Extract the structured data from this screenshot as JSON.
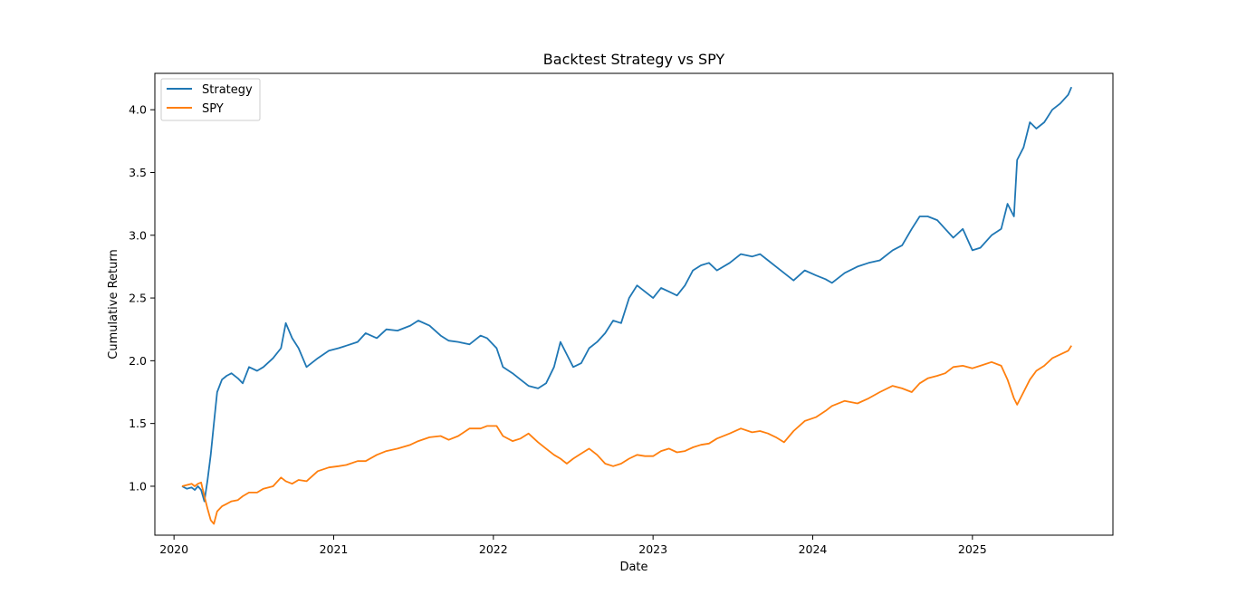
{
  "chart_data": {
    "type": "line",
    "title": "Backtest Strategy vs SPY",
    "xlabel": "Date",
    "ylabel": "Cumulative Return",
    "xlim": [
      2019.88,
      2025.88
    ],
    "ylim": [
      0.61,
      4.29
    ],
    "grid": false,
    "legend_position": "upper-left",
    "x_ticks": [
      "2020",
      "2021",
      "2022",
      "2023",
      "2024",
      "2025"
    ],
    "y_ticks": [
      "1.0",
      "1.5",
      "2.0",
      "2.5",
      "3.0",
      "3.5",
      "4.0"
    ],
    "series": [
      {
        "name": "Strategy",
        "color": "#1f77b4",
        "points": [
          [
            2020.05,
            1.0
          ],
          [
            2020.08,
            0.98
          ],
          [
            2020.11,
            0.99
          ],
          [
            2020.13,
            0.97
          ],
          [
            2020.15,
            1.0
          ],
          [
            2020.17,
            0.97
          ],
          [
            2020.19,
            0.88
          ],
          [
            2020.21,
            1.05
          ],
          [
            2020.23,
            1.25
          ],
          [
            2020.25,
            1.5
          ],
          [
            2020.27,
            1.75
          ],
          [
            2020.3,
            1.85
          ],
          [
            2020.33,
            1.88
          ],
          [
            2020.36,
            1.9
          ],
          [
            2020.4,
            1.86
          ],
          [
            2020.43,
            1.82
          ],
          [
            2020.47,
            1.95
          ],
          [
            2020.52,
            1.92
          ],
          [
            2020.56,
            1.95
          ],
          [
            2020.62,
            2.02
          ],
          [
            2020.67,
            2.1
          ],
          [
            2020.7,
            2.3
          ],
          [
            2020.74,
            2.18
          ],
          [
            2020.78,
            2.1
          ],
          [
            2020.83,
            1.95
          ],
          [
            2020.9,
            2.02
          ],
          [
            2020.97,
            2.08
          ],
          [
            2021.03,
            2.1
          ],
          [
            2021.08,
            2.12
          ],
          [
            2021.15,
            2.15
          ],
          [
            2021.2,
            2.22
          ],
          [
            2021.27,
            2.18
          ],
          [
            2021.33,
            2.25
          ],
          [
            2021.4,
            2.24
          ],
          [
            2021.48,
            2.28
          ],
          [
            2021.53,
            2.32
          ],
          [
            2021.6,
            2.28
          ],
          [
            2021.67,
            2.2
          ],
          [
            2021.72,
            2.16
          ],
          [
            2021.78,
            2.15
          ],
          [
            2021.85,
            2.13
          ],
          [
            2021.92,
            2.2
          ],
          [
            2021.96,
            2.18
          ],
          [
            2022.02,
            2.1
          ],
          [
            2022.06,
            1.95
          ],
          [
            2022.12,
            1.9
          ],
          [
            2022.17,
            1.85
          ],
          [
            2022.22,
            1.8
          ],
          [
            2022.28,
            1.78
          ],
          [
            2022.33,
            1.82
          ],
          [
            2022.38,
            1.95
          ],
          [
            2022.42,
            2.15
          ],
          [
            2022.46,
            2.05
          ],
          [
            2022.5,
            1.95
          ],
          [
            2022.55,
            1.98
          ],
          [
            2022.6,
            2.1
          ],
          [
            2022.65,
            2.15
          ],
          [
            2022.7,
            2.22
          ],
          [
            2022.75,
            2.32
          ],
          [
            2022.8,
            2.3
          ],
          [
            2022.85,
            2.5
          ],
          [
            2022.9,
            2.6
          ],
          [
            2022.95,
            2.55
          ],
          [
            2023.0,
            2.5
          ],
          [
            2023.05,
            2.58
          ],
          [
            2023.1,
            2.55
          ],
          [
            2023.15,
            2.52
          ],
          [
            2023.2,
            2.6
          ],
          [
            2023.25,
            2.72
          ],
          [
            2023.3,
            2.76
          ],
          [
            2023.35,
            2.78
          ],
          [
            2023.4,
            2.72
          ],
          [
            2023.48,
            2.78
          ],
          [
            2023.55,
            2.85
          ],
          [
            2023.62,
            2.83
          ],
          [
            2023.67,
            2.85
          ],
          [
            2023.72,
            2.8
          ],
          [
            2023.77,
            2.75
          ],
          [
            2023.82,
            2.7
          ],
          [
            2023.88,
            2.64
          ],
          [
            2023.95,
            2.72
          ],
          [
            2024.02,
            2.68
          ],
          [
            2024.08,
            2.65
          ],
          [
            2024.12,
            2.62
          ],
          [
            2024.2,
            2.7
          ],
          [
            2024.28,
            2.75
          ],
          [
            2024.35,
            2.78
          ],
          [
            2024.42,
            2.8
          ],
          [
            2024.5,
            2.88
          ],
          [
            2024.56,
            2.92
          ],
          [
            2024.62,
            3.05
          ],
          [
            2024.67,
            3.15
          ],
          [
            2024.72,
            3.15
          ],
          [
            2024.78,
            3.12
          ],
          [
            2024.83,
            3.05
          ],
          [
            2024.88,
            2.98
          ],
          [
            2024.94,
            3.05
          ],
          [
            2025.0,
            2.88
          ],
          [
            2025.05,
            2.9
          ],
          [
            2025.12,
            3.0
          ],
          [
            2025.18,
            3.05
          ],
          [
            2025.22,
            3.25
          ],
          [
            2025.26,
            3.15
          ],
          [
            2025.28,
            3.6
          ],
          [
            2025.32,
            3.7
          ],
          [
            2025.36,
            3.9
          ],
          [
            2025.4,
            3.85
          ],
          [
            2025.45,
            3.9
          ],
          [
            2025.5,
            4.0
          ],
          [
            2025.55,
            4.05
          ],
          [
            2025.6,
            4.12
          ],
          [
            2025.62,
            4.18
          ]
        ]
      },
      {
        "name": "SPY",
        "color": "#ff7f0e",
        "points": [
          [
            2020.05,
            1.0
          ],
          [
            2020.08,
            1.01
          ],
          [
            2020.11,
            1.02
          ],
          [
            2020.13,
            1.0
          ],
          [
            2020.15,
            1.02
          ],
          [
            2020.17,
            1.03
          ],
          [
            2020.19,
            0.92
          ],
          [
            2020.21,
            0.82
          ],
          [
            2020.23,
            0.73
          ],
          [
            2020.25,
            0.7
          ],
          [
            2020.27,
            0.8
          ],
          [
            2020.3,
            0.84
          ],
          [
            2020.33,
            0.86
          ],
          [
            2020.36,
            0.88
          ],
          [
            2020.4,
            0.89
          ],
          [
            2020.43,
            0.92
          ],
          [
            2020.47,
            0.95
          ],
          [
            2020.52,
            0.95
          ],
          [
            2020.56,
            0.98
          ],
          [
            2020.62,
            1.0
          ],
          [
            2020.67,
            1.07
          ],
          [
            2020.7,
            1.04
          ],
          [
            2020.74,
            1.02
          ],
          [
            2020.78,
            1.05
          ],
          [
            2020.83,
            1.04
          ],
          [
            2020.9,
            1.12
          ],
          [
            2020.97,
            1.15
          ],
          [
            2021.03,
            1.16
          ],
          [
            2021.08,
            1.17
          ],
          [
            2021.15,
            1.2
          ],
          [
            2021.2,
            1.2
          ],
          [
            2021.27,
            1.25
          ],
          [
            2021.33,
            1.28
          ],
          [
            2021.4,
            1.3
          ],
          [
            2021.48,
            1.33
          ],
          [
            2021.53,
            1.36
          ],
          [
            2021.6,
            1.39
          ],
          [
            2021.67,
            1.4
          ],
          [
            2021.72,
            1.37
          ],
          [
            2021.78,
            1.4
          ],
          [
            2021.85,
            1.46
          ],
          [
            2021.92,
            1.46
          ],
          [
            2021.96,
            1.48
          ],
          [
            2022.02,
            1.48
          ],
          [
            2022.06,
            1.4
          ],
          [
            2022.12,
            1.36
          ],
          [
            2022.17,
            1.38
          ],
          [
            2022.22,
            1.42
          ],
          [
            2022.28,
            1.35
          ],
          [
            2022.33,
            1.3
          ],
          [
            2022.38,
            1.25
          ],
          [
            2022.42,
            1.22
          ],
          [
            2022.46,
            1.18
          ],
          [
            2022.5,
            1.22
          ],
          [
            2022.55,
            1.26
          ],
          [
            2022.6,
            1.3
          ],
          [
            2022.65,
            1.25
          ],
          [
            2022.7,
            1.18
          ],
          [
            2022.75,
            1.16
          ],
          [
            2022.8,
            1.18
          ],
          [
            2022.85,
            1.22
          ],
          [
            2022.9,
            1.25
          ],
          [
            2022.95,
            1.24
          ],
          [
            2023.0,
            1.24
          ],
          [
            2023.05,
            1.28
          ],
          [
            2023.1,
            1.3
          ],
          [
            2023.15,
            1.27
          ],
          [
            2023.2,
            1.28
          ],
          [
            2023.25,
            1.31
          ],
          [
            2023.3,
            1.33
          ],
          [
            2023.35,
            1.34
          ],
          [
            2023.4,
            1.38
          ],
          [
            2023.48,
            1.42
          ],
          [
            2023.55,
            1.46
          ],
          [
            2023.62,
            1.43
          ],
          [
            2023.67,
            1.44
          ],
          [
            2023.72,
            1.42
          ],
          [
            2023.77,
            1.39
          ],
          [
            2023.82,
            1.35
          ],
          [
            2023.88,
            1.44
          ],
          [
            2023.95,
            1.52
          ],
          [
            2024.02,
            1.55
          ],
          [
            2024.08,
            1.6
          ],
          [
            2024.12,
            1.64
          ],
          [
            2024.2,
            1.68
          ],
          [
            2024.28,
            1.66
          ],
          [
            2024.35,
            1.7
          ],
          [
            2024.42,
            1.75
          ],
          [
            2024.5,
            1.8
          ],
          [
            2024.56,
            1.78
          ],
          [
            2024.62,
            1.75
          ],
          [
            2024.67,
            1.82
          ],
          [
            2024.72,
            1.86
          ],
          [
            2024.78,
            1.88
          ],
          [
            2024.83,
            1.9
          ],
          [
            2024.88,
            1.95
          ],
          [
            2024.94,
            1.96
          ],
          [
            2025.0,
            1.94
          ],
          [
            2025.05,
            1.96
          ],
          [
            2025.12,
            1.99
          ],
          [
            2025.18,
            1.96
          ],
          [
            2025.22,
            1.85
          ],
          [
            2025.26,
            1.7
          ],
          [
            2025.28,
            1.65
          ],
          [
            2025.32,
            1.75
          ],
          [
            2025.36,
            1.85
          ],
          [
            2025.4,
            1.92
          ],
          [
            2025.45,
            1.96
          ],
          [
            2025.5,
            2.02
          ],
          [
            2025.55,
            2.05
          ],
          [
            2025.6,
            2.08
          ],
          [
            2025.62,
            2.12
          ]
        ]
      }
    ]
  }
}
